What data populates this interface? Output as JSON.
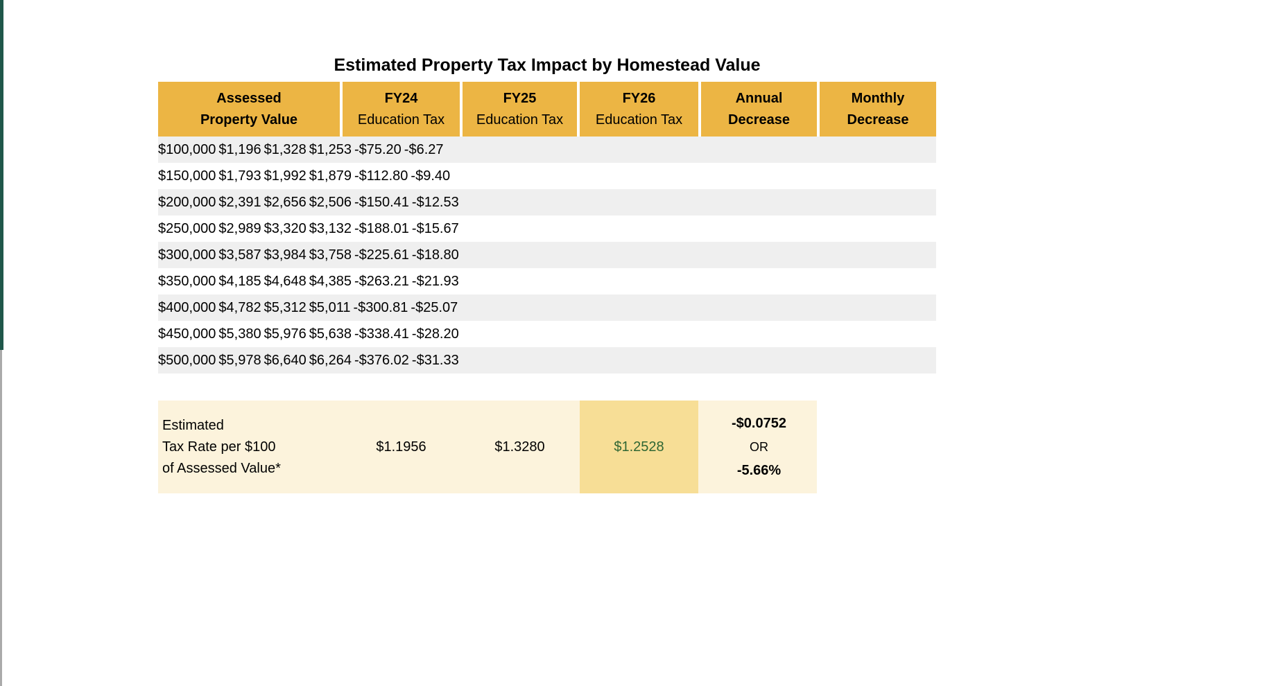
{
  "title": "Estimated Property Tax Impact by Homestead Value",
  "table": {
    "headers": [
      {
        "line1": "Assessed",
        "line2": "Property Value"
      },
      {
        "line1": "FY24",
        "line2": "Education Tax"
      },
      {
        "line1": "FY25",
        "line2": "Education Tax"
      },
      {
        "line1": "FY26",
        "line2": "Education Tax"
      },
      {
        "line1": "Annual",
        "line2": "Decrease"
      },
      {
        "line1": "Monthly",
        "line2": "Decrease"
      }
    ],
    "rows": [
      [
        "$100,000",
        "$1,196",
        "$1,328",
        "$1,253",
        "-$75.20",
        "-$6.27"
      ],
      [
        "$150,000",
        "$1,793",
        "$1,992",
        "$1,879",
        "-$112.80",
        "-$9.40"
      ],
      [
        "$200,000",
        "$2,391",
        "$2,656",
        "$2,506",
        "-$150.41",
        "-$12.53"
      ],
      [
        "$250,000",
        "$2,989",
        "$3,320",
        "$3,132",
        "-$188.01",
        "-$15.67"
      ],
      [
        "$300,000",
        "$3,587",
        "$3,984",
        "$3,758",
        "-$225.61",
        "-$18.80"
      ],
      [
        "$350,000",
        "$4,185",
        "$4,648",
        "$4,385",
        "-$263.21",
        "-$21.93"
      ],
      [
        "$400,000",
        "$4,782",
        "$5,312",
        "$5,011",
        "-$300.81",
        "-$25.07"
      ],
      [
        "$450,000",
        "$5,380",
        "$5,976",
        "$5,638",
        "-$338.41",
        "-$28.20"
      ],
      [
        "$500,000",
        "$5,978",
        "$6,640",
        "$6,264",
        "-$376.02",
        "-$31.33"
      ]
    ]
  },
  "tax_rate": {
    "label_line1": "Estimated",
    "label_line2": "Tax Rate per $100",
    "label_line3": "of Assessed Value*",
    "fy24": "$1.1956",
    "fy25": "$1.3280",
    "fy26": "$1.2528",
    "annual_change": "-$0.0752",
    "or_label": "OR",
    "percent_change": "-5.66%"
  },
  "colors": {
    "header_gold": "#ECB544",
    "stripe_gray": "#EFEFEF",
    "cream": "#FCF3DC",
    "highlight_gold": "#F7DE96",
    "green_text": "#2F6633",
    "edge_green": "#1F574A",
    "edge_gray": "#AAAAAA"
  }
}
